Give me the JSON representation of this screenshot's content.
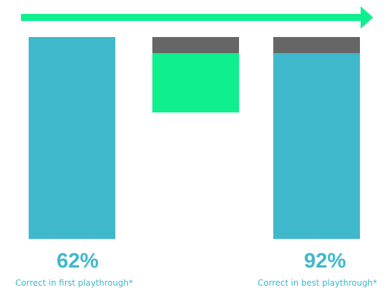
{
  "chart_data": {
    "type": "bar",
    "subtype": "waterfall",
    "ylim": [
      0,
      100
    ],
    "bars": [
      {
        "kind": "total",
        "start": 0,
        "end": 62,
        "cap": 0,
        "color": "#40b8cb"
      },
      {
        "kind": "increase",
        "start": 62,
        "end": 92,
        "cap": 3,
        "color": "#0fef8d"
      },
      {
        "kind": "total",
        "start": 0,
        "end": 92,
        "cap": 3,
        "color": "#40b8cb"
      }
    ],
    "labels": [
      {
        "value": "62%",
        "caption": "Correct in first playthrough*"
      },
      {
        "value": "",
        "caption": ""
      },
      {
        "value": "92%",
        "caption": "Correct in best playthrough*"
      }
    ],
    "grid": false,
    "legend": "none"
  },
  "colors": {
    "arrow": "#0fef8d",
    "cap": "#666666",
    "label_color": "#40b8cb"
  }
}
